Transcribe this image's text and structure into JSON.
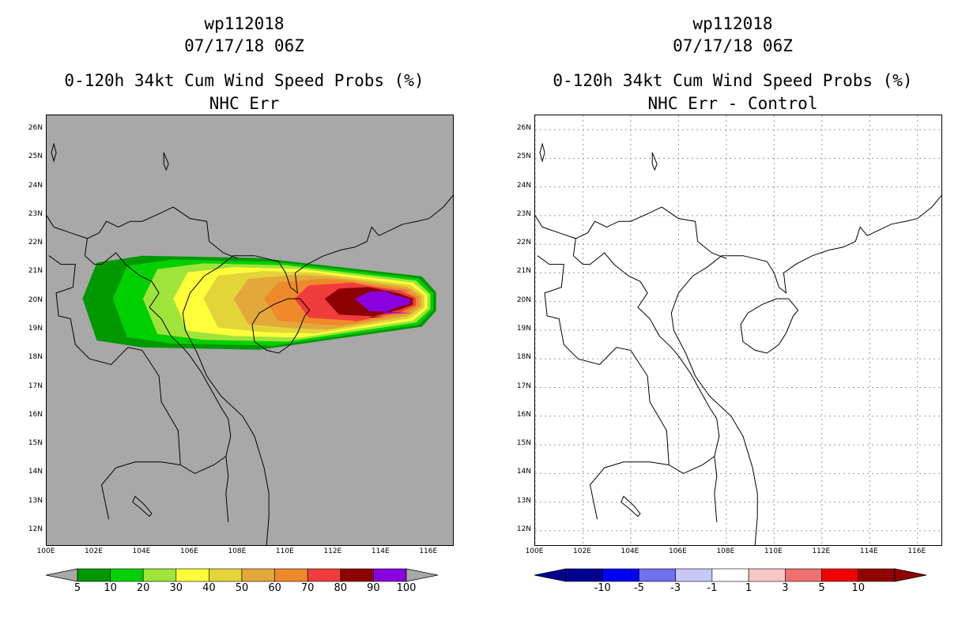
{
  "left": {
    "title_line1": "wp112018",
    "title_line2": "07/17/18 06Z",
    "title_line3": "0-120h 34kt Cum Wind Speed Probs (%)",
    "title_line4": "NHC Err",
    "background_color": "#a8a8a8",
    "colorbar": {
      "colors": [
        "#009800",
        "#00d000",
        "#9fe43a",
        "#fefe3a",
        "#e3d43a",
        "#e3a83a",
        "#ef8a2a",
        "#f03c3c",
        "#8c0000",
        "#8a00de"
      ],
      "labels": [
        "5",
        "10",
        "20",
        "30",
        "40",
        "50",
        "60",
        "70",
        "80",
        "90",
        "100"
      ]
    }
  },
  "right": {
    "title_line1": "wp112018",
    "title_line2": "07/17/18 06Z",
    "title_line3": "0-120h 34kt Cum Wind Speed Probs (%)",
    "title_line4": "NHC Err - Control",
    "background_color": "#ffffff",
    "colorbar": {
      "colors": [
        "#000090",
        "#0000f0",
        "#7070f0",
        "#c8c8f8",
        "#ffffff",
        "#f8c8c8",
        "#f07070",
        "#f00000",
        "#900000"
      ],
      "labels": [
        "-10",
        "-5",
        "-3",
        "-1",
        "1",
        "3",
        "5",
        "10"
      ]
    }
  },
  "map": {
    "lat_labels": [
      "26N",
      "25N",
      "24N",
      "23N",
      "22N",
      "21N",
      "20N",
      "19N",
      "18N",
      "17N",
      "16N",
      "15N",
      "14N",
      "13N",
      "12N"
    ],
    "lon_labels": [
      "100E",
      "102E",
      "104E",
      "106E",
      "108E",
      "110E",
      "112E",
      "114E",
      "116E"
    ],
    "lat_range": [
      11.5,
      26.5
    ],
    "lon_range": [
      100,
      117
    ]
  },
  "probability_field": {
    "center_lat": 20.0,
    "track_start_lon": 101.2,
    "track_end_lon": 116.3,
    "bands": [
      {
        "threshold": 5,
        "color": "#009800"
      },
      {
        "threshold": 10,
        "color": "#00d000"
      },
      {
        "threshold": 20,
        "color": "#9fe43a"
      },
      {
        "threshold": 30,
        "color": "#fefe3a"
      },
      {
        "threshold": 40,
        "color": "#e3d43a"
      },
      {
        "threshold": 50,
        "color": "#e3a83a"
      },
      {
        "threshold": 60,
        "color": "#ef8a2a"
      },
      {
        "threshold": 70,
        "color": "#f03c3c"
      },
      {
        "threshold": 80,
        "color": "#8c0000"
      },
      {
        "threshold": 90,
        "color": "#8a00de"
      }
    ]
  }
}
